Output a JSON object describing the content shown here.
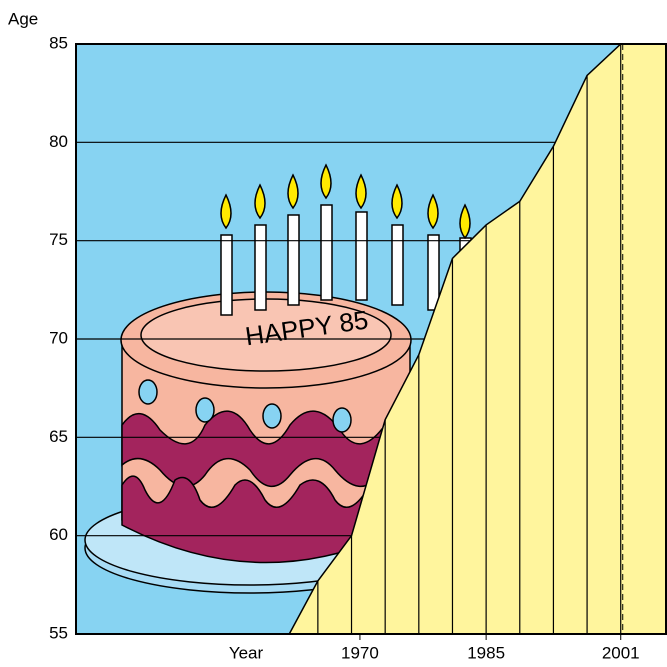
{
  "chart_data": {
    "type": "area",
    "x_label": "Year",
    "y_label": "Age",
    "annotation": "HAPPY 85",
    "x": [
      1961.6,
      1965,
      1969,
      1973,
      1977,
      1981,
      1985,
      1989,
      1993,
      1997,
      2001,
      2006.5
    ],
    "values": [
      55,
      57.7,
      60,
      65.9,
      69.2,
      74.1,
      75.8,
      77,
      79.8,
      83.4,
      85,
      85
    ],
    "color": "#fff59d",
    "background": "#87d3f2",
    "xlim": [
      1936.25,
      2006.5
    ],
    "xticks": [
      1970,
      1985,
      2001
    ],
    "ylim": [
      55,
      85
    ],
    "yticks": [
      55,
      60,
      65,
      70,
      75,
      80,
      85
    ],
    "grid": true,
    "marker_line": 2001
  }
}
